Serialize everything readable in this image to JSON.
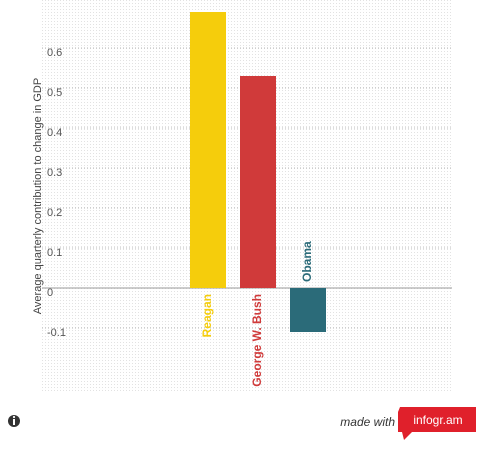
{
  "chart_data": {
    "type": "bar",
    "y_label": "Average quarterly contribution to change in GDP",
    "categories": [
      "Reagan",
      "George W. Bush",
      "Obama"
    ],
    "values": [
      0.69,
      0.53,
      -0.11
    ],
    "colors": [
      "#f5cd0c",
      "#d03a3a",
      "#2b6b79"
    ],
    "ylim": [
      -0.26,
      0.72
    ],
    "yticks": [
      -0.1,
      0,
      0.1,
      0.2,
      0.3,
      0.4,
      0.5,
      0.6
    ],
    "grid": true
  },
  "footer": {
    "made_with": "made with",
    "brand": "infogr.am"
  }
}
